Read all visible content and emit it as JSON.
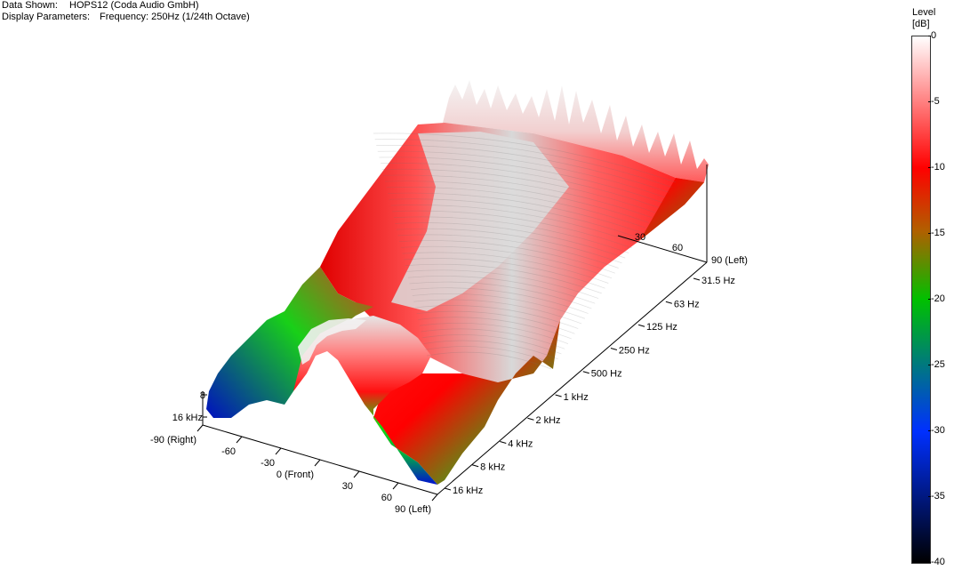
{
  "header": {
    "data_shown_label": "Data Shown:",
    "data_shown_value": "HOPS12 (Coda Audio GmbH)",
    "display_params_label": "Display Parameters:",
    "display_params_value": "Frequency: 250Hz (1/24th Octave)"
  },
  "legend": {
    "title_line1": "Level",
    "title_line2": "[dB]",
    "ticks": [
      "0",
      "-5",
      "-10",
      "-15",
      "-20",
      "-25",
      "-30",
      "-35",
      "-40"
    ],
    "colors": [
      "#ffffff",
      "#ff0000",
      "#b06000",
      "#00c000",
      "#0030ff",
      "#000000"
    ]
  },
  "chart_data": {
    "type": "surface-3d",
    "title": "",
    "angle_axis": {
      "ticks": [
        "-90 (Right)",
        "-60",
        "-30",
        "0 (Front)",
        "30",
        "60",
        "90 (Left)"
      ],
      "values": [
        -90,
        -60,
        -30,
        0,
        30,
        60,
        90
      ]
    },
    "frequency_axis": {
      "ticks": [
        "31.5 Hz",
        "63 Hz",
        "125 Hz",
        "250 Hz",
        "500 Hz",
        "1 kHz",
        "2 kHz",
        "4 kHz",
        "8 kHz",
        "16 kHz"
      ],
      "values_hz": [
        31.5,
        63,
        125,
        250,
        500,
        1000,
        2000,
        4000,
        8000,
        16000
      ]
    },
    "back_axis_ticks": [
      "30",
      "60",
      "90 (Left)"
    ],
    "left_axis_ticks": [
      "8",
      "16 kHz"
    ],
    "level_range_db": [
      -40,
      0
    ]
  }
}
